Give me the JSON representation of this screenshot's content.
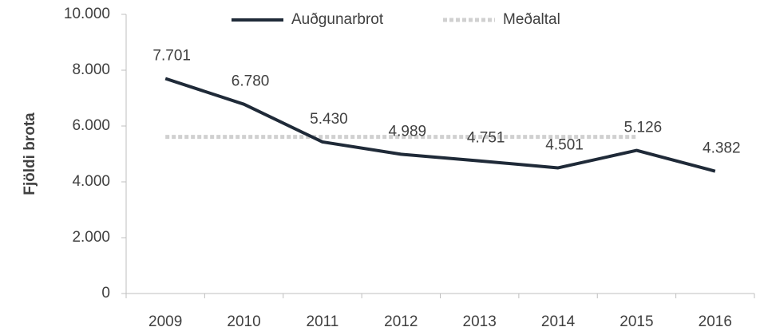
{
  "chart_data": {
    "type": "line",
    "y_label": "Fjöldi brota",
    "categories": [
      "2009",
      "2010",
      "2011",
      "2012",
      "2013",
      "2014",
      "2015",
      "2016"
    ],
    "series": [
      {
        "name": "Auðgunarbrot",
        "color": "#1f2a38",
        "style": "solid",
        "values": [
          7701,
          6780,
          5430,
          4989,
          4751,
          4501,
          5126,
          4382
        ],
        "value_labels": [
          "7.701",
          "6.780",
          "5.430",
          "4.989",
          "4.751",
          "4.501",
          "5.126",
          "4.382"
        ]
      },
      {
        "name": "Meðaltal",
        "color": "#d0d0d0",
        "style": "dotted",
        "values": [
          5611,
          5611,
          5611,
          5611,
          5611,
          5611,
          5611,
          null
        ]
      }
    ],
    "ylim": [
      0,
      10000
    ],
    "yticks": [
      0,
      {
        "value": 2000,
        "label": "2.000"
      },
      {
        "value": 4000,
        "label": "4.000"
      },
      {
        "value": 6000,
        "label": "6.000"
      },
      {
        "value": 8000,
        "label": "8.000"
      },
      {
        "value": 10000,
        "label": "10.000"
      }
    ],
    "legend": "top",
    "grid": false
  }
}
